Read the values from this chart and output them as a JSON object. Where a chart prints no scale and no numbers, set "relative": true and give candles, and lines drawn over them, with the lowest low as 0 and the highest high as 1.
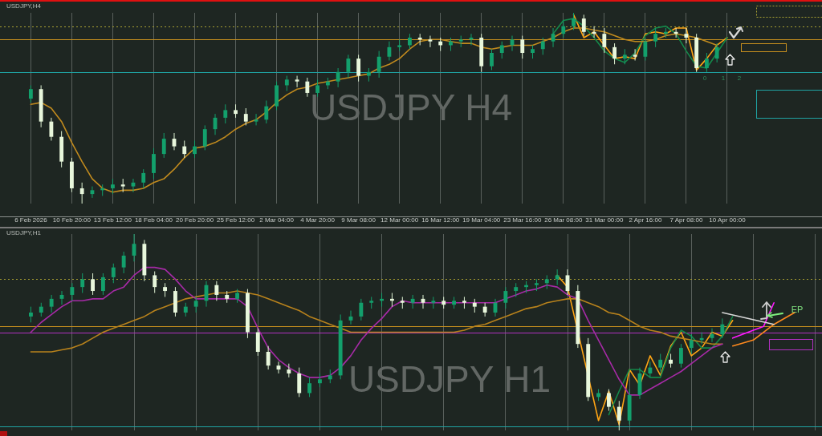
{
  "chart_data": [
    {
      "type": "candlestick",
      "title": "USDJPY H4",
      "subtitle": "USDJPY,H4",
      "relative": true,
      "grid": "x",
      "tick_labels": "x",
      "legend": false,
      "marker": "none",
      "categories": [
        "6 Feb 2026",
        null,
        null,
        null,
        "10 Feb 20:00",
        null,
        null,
        null,
        "13 Feb 12:00",
        null,
        null,
        null,
        "18 Feb 04:00",
        null,
        null,
        null,
        "20 Feb 20:00",
        null,
        null,
        null,
        "25 Feb 12:00",
        null,
        null,
        null,
        "2 Mar 04:00",
        null,
        null,
        null,
        "4 Mar 20:00",
        null,
        null,
        null,
        "9 Mar 08:00",
        null,
        null,
        null,
        "12 Mar 00:00",
        null,
        null,
        null,
        "16 Mar 12:00",
        null,
        null,
        null,
        "19 Mar 04:00",
        null,
        null,
        null,
        "23 Mar 16:00",
        null,
        null,
        null,
        "26 Mar 08:00",
        null,
        null,
        null,
        "31 Mar 00:00",
        null,
        null,
        null,
        "2 Apr 16:00",
        null,
        null,
        null,
        "7 Apr 08:00",
        null,
        null,
        null,
        "10 Apr 00:00",
        null,
        null,
        null,
        null,
        null,
        null,
        null,
        null
      ],
      "ohlc": [
        [
          0.55,
          0.62,
          0.53,
          0.6
        ],
        [
          0.6,
          0.62,
          0.4,
          0.43
        ],
        [
          0.43,
          0.45,
          0.33,
          0.35
        ],
        [
          0.35,
          0.38,
          0.19,
          0.22
        ],
        [
          0.22,
          0.24,
          0.06,
          0.08
        ],
        [
          0.08,
          0.11,
          0,
          0.05
        ],
        [
          0.05,
          0.09,
          0.03,
          0.07
        ],
        [
          0.07,
          0.1,
          0.04,
          0.08
        ],
        [
          0.08,
          0.13,
          0.05,
          0.1
        ],
        [
          0.1,
          0.13,
          0.06,
          0.09
        ],
        [
          0.09,
          0.13,
          0.06,
          0.11
        ],
        [
          0.11,
          0.18,
          0.08,
          0.16
        ],
        [
          0.16,
          0.29,
          0.13,
          0.26
        ],
        [
          0.26,
          0.37,
          0.24,
          0.34
        ],
        [
          0.34,
          0.37,
          0.28,
          0.3
        ],
        [
          0.3,
          0.33,
          0.24,
          0.26
        ],
        [
          0.26,
          0.33,
          0.24,
          0.3
        ],
        [
          0.3,
          0.41,
          0.28,
          0.39
        ],
        [
          0.39,
          0.47,
          0.36,
          0.45
        ],
        [
          0.45,
          0.52,
          0.42,
          0.49
        ],
        [
          0.49,
          0.52,
          0.45,
          0.47
        ],
        [
          0.47,
          0.5,
          0.41,
          0.43
        ],
        [
          0.43,
          0.47,
          0.41,
          0.44
        ],
        [
          0.44,
          0.54,
          0.42,
          0.51
        ],
        [
          0.51,
          0.64,
          0.49,
          0.62
        ],
        [
          0.62,
          0.67,
          0.59,
          0.65
        ],
        [
          0.65,
          0.67,
          0.61,
          0.64
        ],
        [
          0.64,
          0.66,
          0.56,
          0.58
        ],
        [
          0.58,
          0.65,
          0.56,
          0.62
        ],
        [
          0.62,
          0.66,
          0.6,
          0.64
        ],
        [
          0.64,
          0.71,
          0.61,
          0.69
        ],
        [
          0.69,
          0.78,
          0.66,
          0.76
        ],
        [
          0.76,
          0.78,
          0.64,
          0.67
        ],
        [
          0.67,
          0.71,
          0.64,
          0.69
        ],
        [
          0.69,
          0.8,
          0.66,
          0.77
        ],
        [
          0.77,
          0.85,
          0.75,
          0.82
        ],
        [
          0.82,
          0.86,
          0.8,
          0.83
        ],
        [
          0.83,
          0.89,
          0.81,
          0.87
        ],
        [
          0.87,
          0.89,
          0.83,
          0.86
        ],
        [
          0.86,
          0.88,
          0.82,
          0.85
        ],
        [
          0.85,
          0.87,
          0.8,
          0.83
        ],
        [
          0.83,
          0.87,
          0.8,
          0.85
        ],
        [
          0.85,
          0.88,
          0.82,
          0.86
        ],
        [
          0.86,
          0.89,
          0.83,
          0.87
        ],
        [
          0.87,
          0.89,
          0.69,
          0.72
        ],
        [
          0.72,
          0.81,
          0.7,
          0.79
        ],
        [
          0.79,
          0.85,
          0.76,
          0.83
        ],
        [
          0.83,
          0.88,
          0.8,
          0.86
        ],
        [
          0.86,
          0.88,
          0.76,
          0.79
        ],
        [
          0.79,
          0.83,
          0.76,
          0.81
        ],
        [
          0.81,
          0.87,
          0.78,
          0.85
        ],
        [
          0.85,
          0.92,
          0.82,
          0.89
        ],
        [
          0.89,
          0.96,
          0.87,
          0.93
        ],
        [
          0.93,
          1,
          0.91,
          0.97
        ],
        [
          0.97,
          0.99,
          0.88,
          0.9
        ],
        [
          0.9,
          0.93,
          0.87,
          0.89
        ],
        [
          0.89,
          0.92,
          0.79,
          0.82
        ],
        [
          0.82,
          0.84,
          0.73,
          0.76
        ],
        [
          0.76,
          0.81,
          0.73,
          0.78
        ],
        [
          0.78,
          0.81,
          0.75,
          0.77
        ],
        [
          0.77,
          0.87,
          0.75,
          0.85
        ],
        [
          0.85,
          0.92,
          0.82,
          0.89
        ],
        [
          0.89,
          0.92,
          0.87,
          0.9
        ],
        [
          0.9,
          0.92,
          0.87,
          0.89
        ],
        [
          0.89,
          0.92,
          0.84,
          0.87
        ],
        [
          0.87,
          0.89,
          0.69,
          0.71
        ],
        [
          0.71,
          0.79,
          0.69,
          0.76
        ],
        [
          0.76,
          0.84,
          0.74,
          0.82
        ],
        null,
        null,
        null,
        null,
        null,
        null,
        null,
        null,
        null
      ],
      "series": [
        {
          "type": "line",
          "color": "#c08a1e",
          "values": [
            0.52,
            0.53,
            0.5,
            0.43,
            0.32,
            0.22,
            0.13,
            0.08,
            0.06,
            0.07,
            0.07,
            0.08,
            0.11,
            0.13,
            0.18,
            0.24,
            0.29,
            0.3,
            0.32,
            0.35,
            0.39,
            0.42,
            0.44,
            0.48,
            0.53,
            0.57,
            0.6,
            0.61,
            0.63,
            0.64,
            0.65,
            0.66,
            0.67,
            0.68,
            0.71,
            0.73,
            0.76,
            0.81,
            0.85,
            0.86,
            0.86,
            0.85,
            0.84,
            0.84,
            0.82,
            0.81,
            0.82,
            0.83,
            0.83,
            0.83,
            0.85,
            0.87,
            0.9,
            0.92,
            0.92,
            0.91,
            0.9,
            0.88,
            0.86,
            0.85,
            0.85,
            0.86,
            0.88,
            0.89,
            0.88,
            0.87,
            0.85,
            0.83,
            null,
            null,
            null,
            null,
            null,
            null,
            null,
            null,
            null
          ]
        },
        {
          "type": "line",
          "color": "#14884a",
          "values": [
            null,
            null,
            null,
            null,
            null,
            null,
            null,
            null,
            null,
            null,
            null,
            null,
            null,
            null,
            null,
            null,
            null,
            null,
            null,
            null,
            null,
            null,
            null,
            null,
            null,
            null,
            null,
            null,
            null,
            null,
            null,
            null,
            null,
            null,
            null,
            null,
            null,
            null,
            null,
            null,
            null,
            null,
            null,
            null,
            null,
            null,
            null,
            null,
            null,
            null,
            null,
            0.89,
            0.96,
            0.97,
            0.93,
            0.87,
            0.8,
            0.76,
            0.74,
            0.79,
            0.88,
            0.92,
            0.93,
            0.89,
            0.8,
            0.72,
            0.71,
            0.79,
            0.87,
            null,
            null,
            null,
            null,
            null,
            null,
            null,
            null
          ]
        },
        {
          "type": "line",
          "color": "#ffa514",
          "values": [
            null,
            null,
            null,
            null,
            null,
            null,
            null,
            null,
            null,
            null,
            null,
            null,
            null,
            null,
            null,
            null,
            null,
            null,
            null,
            null,
            null,
            null,
            null,
            null,
            null,
            null,
            null,
            null,
            null,
            null,
            null,
            null,
            null,
            null,
            null,
            null,
            null,
            null,
            null,
            null,
            null,
            null,
            null,
            null,
            null,
            null,
            null,
            null,
            null,
            null,
            null,
            null,
            null,
            0.99,
            0.87,
            0.9,
            0.83,
            0.76,
            0.77,
            0.76,
            0.89,
            0.9,
            0.89,
            0.92,
            0.92,
            0.7,
            0.76,
            0.83,
            0.87,
            null,
            null,
            null,
            null,
            null,
            null,
            null,
            null
          ]
        }
      ],
      "ref_lines": [
        {
          "axis": "y",
          "value": 0.93,
          "color": "#a8a032",
          "line_style": "dotted"
        },
        {
          "axis": "y",
          "value": 0.86,
          "color": "#c8901e",
          "line_style": "solid"
        },
        {
          "axis": "y",
          "value": 0.69,
          "color": "#1fa3a3",
          "line_style": "solid"
        }
      ],
      "annotations": [
        "0",
        "1",
        "2"
      ]
    },
    {
      "type": "candlestick",
      "title": "USDJPY H1",
      "subtitle": "USDJPY,H1",
      "relative": true,
      "grid": "x",
      "tick_labels": false,
      "legend": false,
      "marker": "none",
      "categories": [
        null,
        null,
        null,
        null,
        null,
        null,
        null,
        null,
        null,
        null,
        null,
        null,
        null,
        null,
        null,
        null,
        null,
        null,
        null,
        null,
        null,
        null,
        null,
        null,
        null,
        null,
        null,
        null,
        null,
        null,
        null,
        null,
        null,
        null,
        null,
        null,
        null,
        null,
        null,
        null,
        null,
        null,
        null,
        null,
        null,
        null,
        null,
        null,
        null,
        null,
        null,
        null,
        null,
        null,
        null,
        null,
        null,
        null,
        null,
        null,
        null,
        null,
        null,
        null,
        null,
        null,
        null,
        null,
        null,
        null,
        null,
        null,
        null,
        null,
        null,
        null,
        null
      ],
      "ohlc": [
        [
          0.58,
          0.63,
          0.55,
          0.6
        ],
        [
          0.6,
          0.65,
          0.58,
          0.63
        ],
        [
          0.63,
          0.69,
          0.6,
          0.67
        ],
        [
          0.67,
          0.71,
          0.64,
          0.69
        ],
        [
          0.69,
          0.75,
          0.66,
          0.73
        ],
        [
          0.73,
          0.8,
          0.7,
          0.77
        ],
        [
          0.77,
          0.8,
          0.69,
          0.71
        ],
        [
          0.71,
          0.8,
          0.69,
          0.78
        ],
        [
          0.78,
          0.85,
          0.75,
          0.83
        ],
        [
          0.83,
          0.91,
          0.8,
          0.89
        ],
        [
          0.89,
          1,
          0.86,
          0.95
        ],
        [
          0.95,
          0.97,
          0.76,
          0.79
        ],
        [
          0.79,
          0.81,
          0.7,
          0.73
        ],
        [
          0.73,
          0.75,
          0.68,
          0.71
        ],
        [
          0.71,
          0.73,
          0.58,
          0.6
        ],
        [
          0.6,
          0.65,
          0.58,
          0.63
        ],
        [
          0.63,
          0.68,
          0.6,
          0.66
        ],
        [
          0.66,
          0.76,
          0.63,
          0.74
        ],
        [
          0.74,
          0.76,
          0.66,
          0.69
        ],
        [
          0.69,
          0.71,
          0.65,
          0.67
        ],
        [
          0.67,
          0.72,
          0.65,
          0.7
        ],
        [
          0.7,
          0.72,
          0.47,
          0.5
        ],
        [
          0.5,
          0.52,
          0.38,
          0.4
        ],
        [
          0.4,
          0.43,
          0.31,
          0.33
        ],
        [
          0.33,
          0.35,
          0.29,
          0.31
        ],
        [
          0.31,
          0.34,
          0.27,
          0.29
        ],
        [
          0.29,
          0.32,
          0.17,
          0.19
        ],
        [
          0.19,
          0.27,
          0.17,
          0.24
        ],
        [
          0.24,
          0.29,
          0.22,
          0.26
        ],
        [
          0.26,
          0.31,
          0.24,
          0.28
        ],
        [
          0.28,
          0.59,
          0.26,
          0.56
        ],
        [
          0.56,
          0.61,
          0.54,
          0.58
        ],
        [
          0.58,
          0.67,
          0.56,
          0.65
        ],
        [
          0.65,
          0.68,
          0.62,
          0.66
        ],
        [
          0.66,
          0.7,
          0.63,
          0.67
        ],
        [
          0.67,
          0.7,
          0.63,
          0.66
        ],
        [
          0.66,
          0.68,
          0.62,
          0.65
        ],
        [
          0.65,
          0.69,
          0.62,
          0.67
        ],
        [
          0.67,
          0.69,
          0.62,
          0.65
        ],
        [
          0.65,
          0.68,
          0.62,
          0.66
        ],
        [
          0.66,
          0.68,
          0.62,
          0.64
        ],
        [
          0.64,
          0.68,
          0.62,
          0.66
        ],
        [
          0.66,
          0.68,
          0.62,
          0.65
        ],
        [
          0.65,
          0.67,
          0.6,
          0.63
        ],
        [
          0.63,
          0.65,
          0.58,
          0.6
        ],
        [
          0.6,
          0.67,
          0.58,
          0.65
        ],
        [
          0.65,
          0.73,
          0.62,
          0.71
        ],
        [
          0.71,
          0.75,
          0.68,
          0.73
        ],
        [
          0.73,
          0.76,
          0.7,
          0.74
        ],
        [
          0.74,
          0.77,
          0.71,
          0.75
        ],
        [
          0.75,
          0.79,
          0.72,
          0.77
        ],
        [
          0.77,
          0.82,
          0.74,
          0.79
        ],
        [
          0.79,
          0.82,
          0.69,
          0.71
        ],
        [
          0.71,
          0.74,
          0.42,
          0.44
        ],
        [
          0.44,
          0.47,
          0.15,
          0.17
        ],
        [
          0.17,
          0.21,
          0.15,
          0.19
        ],
        [
          0.19,
          0.21,
          0.1,
          0.12
        ],
        [
          0.12,
          0.15,
          0,
          0.05
        ],
        [
          0.05,
          0.21,
          0.03,
          0.18
        ],
        [
          0.18,
          0.32,
          0.16,
          0.29
        ],
        [
          0.29,
          0.35,
          0.27,
          0.32
        ],
        [
          0.32,
          0.39,
          0.3,
          0.36
        ],
        [
          0.36,
          0.39,
          0.32,
          0.34
        ],
        [
          0.34,
          0.44,
          0.32,
          0.42
        ],
        [
          0.42,
          0.49,
          0.39,
          0.46
        ],
        [
          0.46,
          0.5,
          0.44,
          0.47
        ],
        [
          0.47,
          0.52,
          0.45,
          0.49
        ],
        [
          0.49,
          0.57,
          0.47,
          0.54
        ],
        null,
        null,
        null,
        null,
        null,
        null,
        null,
        null,
        null
      ],
      "series": [
        {
          "type": "line",
          "color": "#a62aa6",
          "values": [
            0.5,
            0.55,
            0.59,
            0.63,
            0.66,
            0.66,
            0.67,
            0.67,
            0.71,
            0.73,
            0.79,
            0.83,
            0.83,
            0.82,
            0.77,
            0.71,
            0.67,
            0.67,
            0.67,
            0.67,
            0.67,
            0.63,
            0.52,
            0.42,
            0.36,
            0.32,
            0.29,
            0.27,
            0.27,
            0.28,
            0.32,
            0.38,
            0.46,
            0.52,
            0.57,
            0.63,
            0.66,
            0.65,
            0.65,
            0.65,
            0.65,
            0.65,
            0.65,
            0.65,
            0.65,
            0.65,
            0.67,
            0.69,
            0.71,
            0.72,
            0.74,
            0.73,
            0.69,
            0.67,
            0.56,
            0.46,
            0.36,
            0.26,
            0.18,
            0.18,
            0.21,
            0.24,
            0.27,
            0.3,
            0.34,
            0.38,
            0.42,
            0.44,
            null,
            null,
            null,
            null,
            null,
            null,
            null,
            null,
            null
          ]
        },
        {
          "type": "line",
          "color": "#b8821c",
          "values": [
            0.4,
            0.4,
            0.4,
            0.41,
            0.42,
            0.44,
            0.47,
            0.5,
            0.52,
            0.54,
            0.56,
            0.58,
            0.61,
            0.63,
            0.65,
            0.67,
            0.68,
            0.69,
            0.7,
            0.7,
            0.71,
            0.7,
            0.69,
            0.67,
            0.65,
            0.63,
            0.61,
            0.58,
            0.56,
            0.54,
            0.52,
            0.5,
            0.5,
            0.5,
            0.5,
            0.5,
            0.5,
            0.5,
            0.5,
            0.5,
            0.5,
            0.5,
            0.51,
            0.53,
            0.54,
            0.56,
            0.58,
            0.6,
            0.62,
            0.63,
            0.65,
            0.66,
            0.67,
            0.67,
            0.65,
            0.63,
            0.6,
            0.59,
            0.56,
            0.53,
            0.51,
            0.5,
            0.48,
            0.47,
            0.46,
            0.45,
            0.44,
            0.44,
            null,
            null,
            null,
            null,
            null,
            null,
            null,
            null,
            null
          ]
        },
        {
          "type": "line",
          "color": "#14884a",
          "values": [
            null,
            null,
            null,
            null,
            null,
            null,
            null,
            null,
            null,
            null,
            null,
            null,
            null,
            null,
            null,
            null,
            null,
            null,
            null,
            null,
            null,
            null,
            null,
            null,
            null,
            null,
            null,
            null,
            null,
            null,
            null,
            null,
            null,
            null,
            null,
            null,
            null,
            null,
            null,
            null,
            null,
            null,
            null,
            null,
            null,
            null,
            null,
            null,
            null,
            null,
            null,
            null,
            null,
            null,
            null,
            null,
            0.08,
            0.2,
            0.31,
            0.31,
            0.27,
            0.27,
            0.42,
            0.51,
            0.48,
            0.42,
            0.42,
            0.48,
            0.58,
            null,
            null,
            null,
            null,
            null,
            null,
            null,
            null
          ]
        },
        {
          "type": "line",
          "color": "#ffa514",
          "values": [
            null,
            null,
            null,
            null,
            null,
            null,
            null,
            null,
            null,
            null,
            null,
            null,
            null,
            null,
            null,
            null,
            null,
            null,
            null,
            null,
            null,
            null,
            null,
            null,
            null,
            null,
            null,
            null,
            null,
            null,
            null,
            null,
            null,
            null,
            null,
            null,
            null,
            null,
            null,
            null,
            null,
            null,
            null,
            null,
            null,
            null,
            null,
            null,
            null,
            null,
            null,
            0.79,
            0.73,
            null,
            null,
            0.05,
            0.2,
            0.03,
            0.31,
            0.23,
            0.38,
            0.28,
            0.43,
            0.5,
            0.38,
            0.42,
            0.5,
            0.48,
            0.56,
            null,
            null,
            null,
            null,
            null,
            null,
            null,
            null
          ]
        },
        {
          "type": "line",
          "color": "#d8d8d8",
          "values": [
            null,
            null,
            null,
            null,
            null,
            null,
            null,
            null,
            null,
            null,
            null,
            null,
            null,
            null,
            null,
            null,
            null,
            null,
            null,
            null,
            null,
            null,
            null,
            null,
            null,
            null,
            null,
            null,
            null,
            null,
            null,
            null,
            null,
            null,
            null,
            null,
            null,
            null,
            null,
            null,
            null,
            null,
            null,
            null,
            null,
            null,
            null,
            null,
            null,
            null,
            null,
            null,
            null,
            null,
            null,
            null,
            null,
            null,
            null,
            null,
            null,
            null,
            null,
            null,
            null,
            null,
            null,
            0.6,
            null,
            null,
            null,
            null,
            0.54,
            null,
            null,
            null,
            null
          ]
        },
        {
          "type": "line",
          "color": "#ff19ff",
          "values": [
            null,
            null,
            null,
            null,
            null,
            null,
            null,
            null,
            null,
            null,
            null,
            null,
            null,
            null,
            null,
            null,
            null,
            null,
            null,
            null,
            null,
            null,
            null,
            null,
            null,
            null,
            null,
            null,
            null,
            null,
            null,
            null,
            null,
            null,
            null,
            null,
            null,
            null,
            null,
            null,
            null,
            null,
            null,
            null,
            null,
            null,
            null,
            null,
            null,
            null,
            null,
            null,
            null,
            null,
            null,
            null,
            null,
            null,
            null,
            null,
            null,
            null,
            null,
            null,
            null,
            null,
            null,
            null,
            0.47,
            null,
            null,
            0.53,
            0.65,
            null,
            null,
            null,
            null
          ]
        },
        {
          "type": "line",
          "color": "#ff8a1e",
          "values": [
            null,
            null,
            null,
            null,
            null,
            null,
            null,
            null,
            null,
            null,
            null,
            null,
            null,
            null,
            null,
            null,
            null,
            null,
            null,
            null,
            null,
            null,
            null,
            null,
            null,
            null,
            null,
            null,
            null,
            null,
            null,
            null,
            null,
            null,
            null,
            null,
            null,
            null,
            null,
            null,
            null,
            null,
            null,
            null,
            null,
            null,
            null,
            null,
            null,
            null,
            null,
            null,
            null,
            null,
            null,
            null,
            null,
            null,
            null,
            null,
            null,
            null,
            null,
            null,
            null,
            null,
            null,
            null,
            0.43,
            null,
            0.46,
            null,
            0.54,
            null,
            0.6,
            null,
            null
          ]
        }
      ],
      "ref_lines": [
        {
          "axis": "y",
          "value": 0.77,
          "color": "#a8a032",
          "line_style": "dotted"
        },
        {
          "axis": "y",
          "value": 0.53,
          "color": "#c8901e",
          "line_style": "solid"
        },
        {
          "axis": "y",
          "value": 0.5,
          "color": "#b030c0",
          "line_style": "solid"
        },
        {
          "axis": "y",
          "value": 0.02,
          "color": "#1fa3a3",
          "line_style": "solid"
        }
      ],
      "annotations": [
        "EP"
      ]
    }
  ]
}
